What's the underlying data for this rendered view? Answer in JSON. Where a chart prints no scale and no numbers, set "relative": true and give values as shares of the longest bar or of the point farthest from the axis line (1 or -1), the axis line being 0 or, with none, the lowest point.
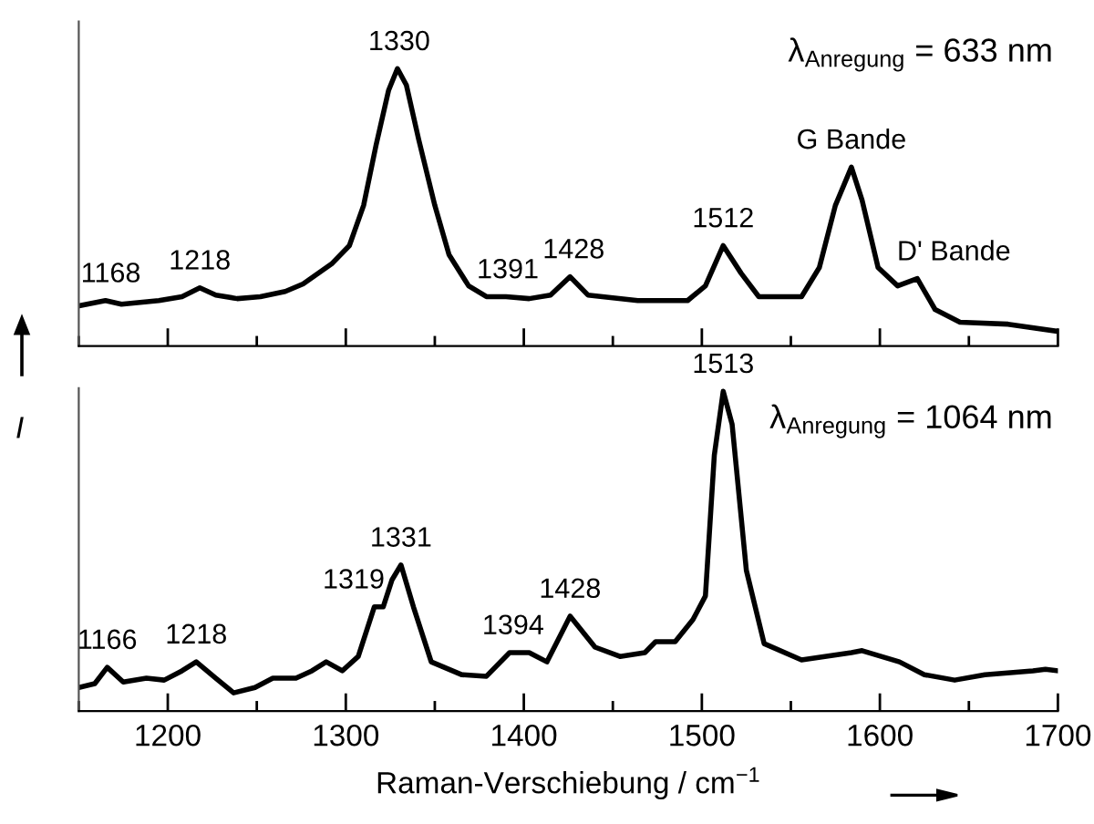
{
  "chart_data": [
    {
      "type": "line",
      "relative": true,
      "xlim": [
        1150,
        1700
      ],
      "xticks": [
        1200,
        1300,
        1400,
        1500,
        1600,
        1700
      ],
      "tick_labels": false,
      "marker": "none",
      "line_style": "solid",
      "grid": false,
      "legend": false,
      "series": [
        {
          "color": "#000000",
          "x": [
            1150,
            1165,
            1174,
            1195,
            1208,
            1218,
            1227,
            1239,
            1252,
            1266,
            1276,
            1292,
            1302,
            1310,
            1317,
            1324,
            1329,
            1334,
            1341,
            1350,
            1358,
            1369,
            1379,
            1390,
            1403,
            1415,
            1426,
            1436,
            1464,
            1492,
            1502,
            1512,
            1522,
            1532,
            1556,
            1566,
            1575,
            1584,
            1590,
            1599,
            1610,
            1621,
            1631,
            1645,
            1672,
            1700
          ],
          "values": [
            0.145,
            0.164,
            0.151,
            0.164,
            0.178,
            0.21,
            0.184,
            0.171,
            0.178,
            0.197,
            0.224,
            0.296,
            0.362,
            0.507,
            0.724,
            0.921,
            1.0,
            0.941,
            0.743,
            0.507,
            0.329,
            0.217,
            0.178,
            0.178,
            0.171,
            0.184,
            0.25,
            0.184,
            0.164,
            0.164,
            0.217,
            0.362,
            0.263,
            0.178,
            0.178,
            0.283,
            0.507,
            0.645,
            0.526,
            0.283,
            0.217,
            0.243,
            0.132,
            0.086,
            0.079,
            0.053
          ]
        }
      ],
      "annotations": [
        {
          "text": "1168",
          "x": 1168,
          "y": 0.164
        },
        {
          "text": "1218",
          "x": 1218,
          "y": 0.21
        },
        {
          "text": "1330",
          "x": 1330,
          "y": 1.0
        },
        {
          "text": "1391",
          "x": 1391,
          "y": 0.178
        },
        {
          "text": "1428",
          "x": 1428,
          "y": 0.25
        },
        {
          "text": "1512",
          "x": 1512,
          "y": 0.362
        },
        {
          "text": "G Bande",
          "x": 1584,
          "y": 0.645
        },
        {
          "text": "D' Bande",
          "x": 1621,
          "y": 0.243
        },
        "λ$_{Anregung}$ = 633 nm"
      ]
    },
    {
      "type": "line",
      "relative": true,
      "xlim": [
        1150,
        1700
      ],
      "xticks": [
        1200,
        1300,
        1400,
        1500,
        1600,
        1700
      ],
      "tick_labels": "x",
      "marker": "none",
      "line_style": "solid",
      "grid": false,
      "legend": false,
      "xlabel": "Raman-Verschiebung / cm$^{−1}$",
      "ylabel": "I",
      "series": [
        {
          "color": "#000000",
          "x": [
            1150,
            1159,
            1166,
            1175,
            1188,
            1198,
            1208,
            1216,
            1227,
            1237,
            1249,
            1259,
            1272,
            1281,
            1289,
            1298,
            1307,
            1316,
            1321,
            1326,
            1331,
            1338,
            1348,
            1365,
            1379,
            1392,
            1403,
            1413,
            1426,
            1440,
            1454,
            1468,
            1474,
            1485,
            1495,
            1502,
            1507,
            1512,
            1517,
            1525,
            1535,
            1556,
            1584,
            1590,
            1611,
            1625,
            1642,
            1659,
            1686,
            1693,
            1700
          ],
          "values": [
            0.074,
            0.086,
            0.137,
            0.091,
            0.103,
            0.097,
            0.126,
            0.154,
            0.103,
            0.057,
            0.074,
            0.103,
            0.103,
            0.126,
            0.154,
            0.126,
            0.171,
            0.326,
            0.326,
            0.411,
            0.457,
            0.326,
            0.154,
            0.114,
            0.109,
            0.183,
            0.183,
            0.154,
            0.297,
            0.2,
            0.171,
            0.183,
            0.217,
            0.217,
            0.286,
            0.36,
            0.8,
            1.0,
            0.897,
            0.44,
            0.211,
            0.16,
            0.183,
            0.189,
            0.154,
            0.114,
            0.097,
            0.114,
            0.126,
            0.131,
            0.126
          ]
        }
      ],
      "annotations": [
        {
          "text": "1166",
          "x": 1166,
          "y": 0.137
        },
        {
          "text": "1218",
          "x": 1216,
          "y": 0.154
        },
        {
          "text": "1319",
          "x": 1319,
          "y": 0.326
        },
        {
          "text": "1331",
          "x": 1331,
          "y": 0.457
        },
        {
          "text": "1394",
          "x": 1394,
          "y": 0.183
        },
        {
          "text": "1428",
          "x": 1426,
          "y": 0.297
        },
        {
          "text": "1513",
          "x": 1512,
          "y": 1.0
        },
        "λ$_{Anregung}$ = 1064 nm"
      ]
    }
  ]
}
